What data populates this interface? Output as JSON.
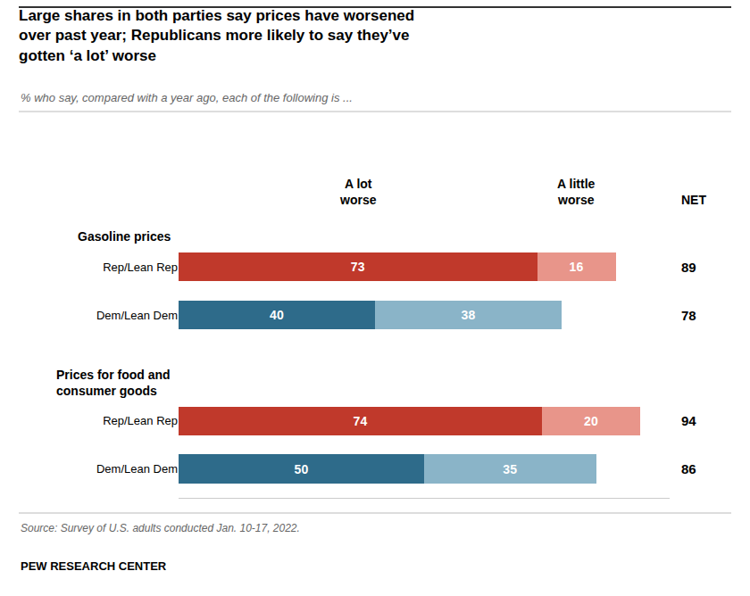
{
  "chart_data": {
    "type": "bar",
    "orientation": "horizontal",
    "stacked": true,
    "data_labels": true,
    "tick_labels": "y",
    "grid": false,
    "title": "Large shares in both parties say prices have worsened\nover past year; Republicans more likely to say they’ve\ngotten ‘a lot’ worse",
    "subtitle": "% who say, compared with a year ago, each of the following is ...",
    "source": "Source: Survey of U.S. adults conducted Jan. 10-17, 2022.",
    "footer": "PEW RESEARCH CENTER",
    "groups": [
      {
        "label": "Gasoline prices",
        "categories": [
          "Rep/Lean Rep",
          "Dem/Lean Dem"
        ]
      },
      {
        "label": "Prices for food and\nconsumer goods",
        "categories": [
          "Rep/Lean Rep",
          "Dem/Lean Dem"
        ]
      }
    ],
    "series": [
      {
        "name": "A lot\nworse",
        "colors": [
          "#c0392b",
          "#2e6b8a",
          "#c0392b",
          "#2e6b8a"
        ],
        "values": [
          73,
          40,
          74,
          50
        ]
      },
      {
        "name": "A little\nworse",
        "colors": [
          "#e8958a",
          "#8ab4c8",
          "#e8958a",
          "#8ab4c8"
        ],
        "values": [
          16,
          38,
          20,
          35
        ]
      }
    ],
    "net": {
      "name": "NET",
      "values": [
        89,
        78,
        94,
        86
      ]
    },
    "xlim": [
      0,
      100
    ]
  }
}
